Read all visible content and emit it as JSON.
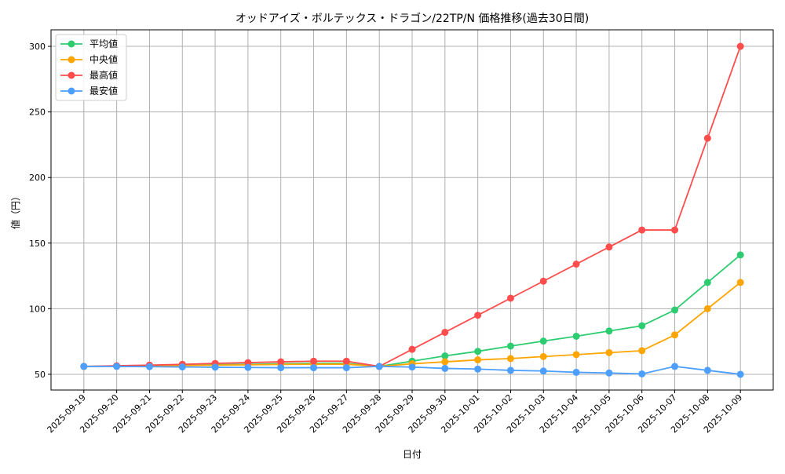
{
  "chart_data": {
    "type": "line",
    "title": "オッドアイズ・ボルテックス・ドラゴン/22TP/N 価格推移(過去30日間)",
    "xlabel": "日付",
    "ylabel": "値（円）",
    "categories": [
      "2025-09-19",
      "2025-09-20",
      "2025-09-21",
      "2025-09-22",
      "2025-09-23",
      "2025-09-24",
      "2025-09-25",
      "2025-09-26",
      "2025-09-27",
      "2025-09-28",
      "2025-09-29",
      "2025-09-30",
      "2025-10-01",
      "2025-10-02",
      "2025-10-03",
      "2025-10-04",
      "2025-10-05",
      "2025-10-06",
      "2025-10-07",
      "2025-10-08",
      "2025-10-09"
    ],
    "yticks": [
      50,
      100,
      150,
      200,
      250,
      300
    ],
    "ylim": [
      38,
      312.6
    ],
    "grid": true,
    "legend_position": "top-left",
    "series": [
      {
        "name": "平均値",
        "color": "#2ecc71",
        "values": [
          56,
          56.3,
          56.6,
          57,
          57.3,
          57.6,
          58,
          58.3,
          58.3,
          56,
          60,
          64,
          67.5,
          71.5,
          75.3,
          79,
          83,
          87,
          99,
          120,
          141
        ]
      },
      {
        "name": "中央値",
        "color": "#ffa500",
        "values": [
          56,
          56.2,
          56.4,
          56.7,
          57,
          57.2,
          57.5,
          57.7,
          57.7,
          56,
          58,
          59.5,
          61,
          62,
          63.5,
          65,
          66.5,
          68,
          80,
          100,
          120
        ]
      },
      {
        "name": "最高値",
        "color": "#ff4d4d",
        "values": [
          56,
          56.5,
          57,
          57.6,
          58.3,
          58.9,
          59.5,
          60,
          60,
          56,
          69,
          82,
          95,
          108,
          121,
          134,
          147,
          160,
          160,
          230,
          300
        ]
      },
      {
        "name": "最安値",
        "color": "#4d9fff",
        "values": [
          56,
          56,
          55.8,
          55.6,
          55.4,
          55.2,
          55,
          55,
          55,
          56,
          55.5,
          54.5,
          54,
          53,
          52.5,
          51.5,
          51,
          50.3,
          56,
          53,
          50
        ]
      }
    ]
  }
}
